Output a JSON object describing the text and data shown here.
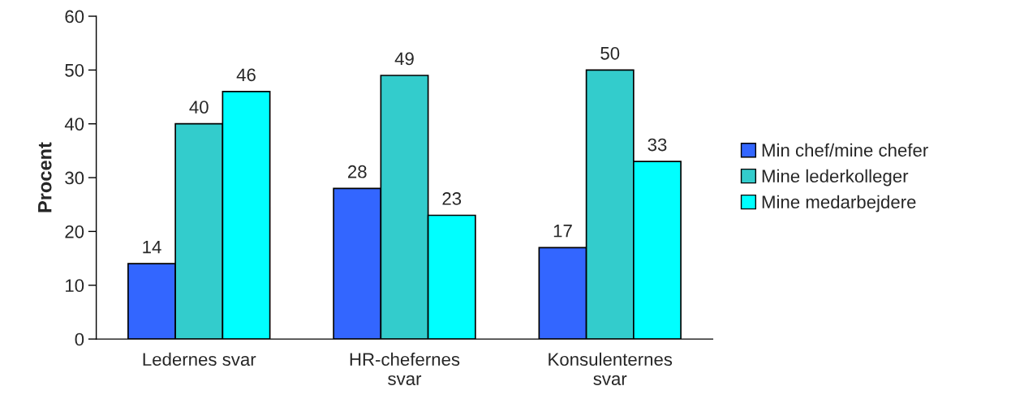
{
  "chart_data": {
    "type": "bar",
    "ylabel": "Procent",
    "categories": [
      "Ledernes svar",
      "HR-chefernes\nsvar",
      "Konsulenternes\nsvar"
    ],
    "series": [
      {
        "name": "Min chef/mine chefer",
        "color": "#3366ff",
        "values": [
          14,
          28,
          17
        ]
      },
      {
        "name": "Mine lederkolleger",
        "color": "#33cccc",
        "values": [
          40,
          49,
          50
        ]
      },
      {
        "name": "Mine medarbejdere",
        "color": "#00ffff",
        "values": [
          46,
          23,
          33
        ]
      }
    ],
    "ylim": [
      0,
      60
    ],
    "yticks": [
      0,
      10,
      20,
      30,
      40,
      50,
      60
    ],
    "data_labels": true,
    "grid": false,
    "legend": "right"
  }
}
